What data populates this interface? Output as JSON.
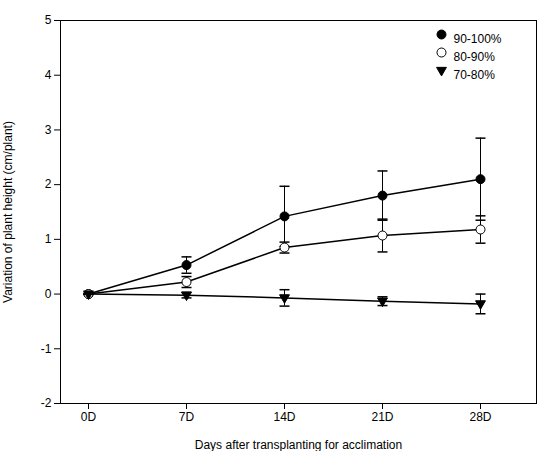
{
  "chart_data": {
    "type": "line",
    "x": [
      0,
      7,
      14,
      21,
      28
    ],
    "series": [
      {
        "name": "90-100%",
        "color": "black",
        "marker": "circle",
        "values": [
          0.0,
          0.53,
          1.42,
          1.8,
          2.1
        ],
        "yerr": [
          0.0,
          0.15,
          0.55,
          0.45,
          0.75
        ]
      },
      {
        "name": "80-90%",
        "color": "black",
        "marker": "circle-open",
        "values": [
          0.0,
          0.22,
          0.85,
          1.07,
          1.18
        ],
        "yerr": [
          0.0,
          0.1,
          0.1,
          0.3,
          0.25
        ]
      },
      {
        "name": "70-80%",
        "color": "black",
        "marker": "triangle-down",
        "values": [
          0.0,
          -0.02,
          -0.07,
          -0.13,
          -0.18
        ],
        "yerr": [
          0.0,
          0.05,
          0.15,
          0.08,
          0.18
        ]
      }
    ],
    "x_label": "Days after transplanting for acclimation",
    "y_label": "Variation of plant height (cm/plant)",
    "xlim": [
      -2,
      32
    ],
    "xticks": [
      {
        "value": 0,
        "label": "0D"
      },
      {
        "value": 7,
        "label": "7D"
      },
      {
        "value": 14,
        "label": "14D"
      },
      {
        "value": 21,
        "label": "21D"
      },
      {
        "value": 28,
        "label": "28D"
      }
    ],
    "ylim": [
      -2,
      5
    ],
    "yticks": [
      -2,
      -1,
      0,
      1,
      2,
      3,
      4,
      5
    ],
    "grid": false,
    "legend": "upper right"
  }
}
